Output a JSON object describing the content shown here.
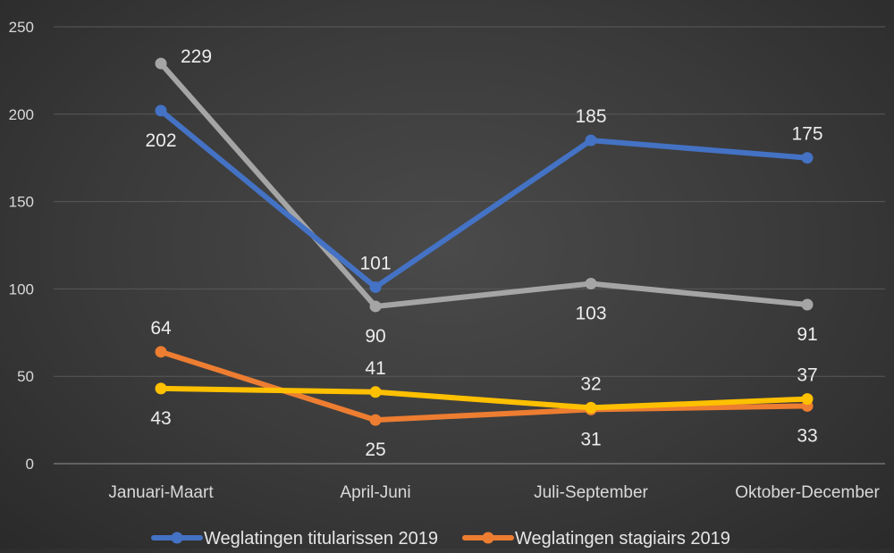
{
  "chart_data": {
    "type": "line",
    "categories": [
      "Januari-Maart",
      "April-Juni",
      "Juli-September",
      "Oktober-December"
    ],
    "ylim": [
      0,
      250
    ],
    "yticks": [
      0,
      50,
      100,
      150,
      200,
      250
    ],
    "grid": true,
    "legend_position": "bottom",
    "series": [
      {
        "name": "",
        "color": "#a5a5a5",
        "values": [
          229,
          90,
          103,
          91
        ],
        "label_pos": [
          "right",
          "below",
          "below",
          "below"
        ]
      },
      {
        "name": "Weglatingen titularissen 2019",
        "color": "#4472c4",
        "values": [
          202,
          101,
          185,
          175
        ],
        "label_pos": [
          "below",
          "above",
          "above",
          "above"
        ]
      },
      {
        "name": "Weglatingen stagiairs 2019",
        "color": "#ed7d31",
        "values": [
          64,
          25,
          31,
          33
        ],
        "label_pos": [
          "above",
          "below",
          "below",
          "below"
        ]
      },
      {
        "name": "",
        "color": "#ffc000",
        "values": [
          43,
          41,
          32,
          37
        ],
        "label_pos": [
          "below",
          "above",
          "above",
          "above"
        ]
      }
    ]
  }
}
